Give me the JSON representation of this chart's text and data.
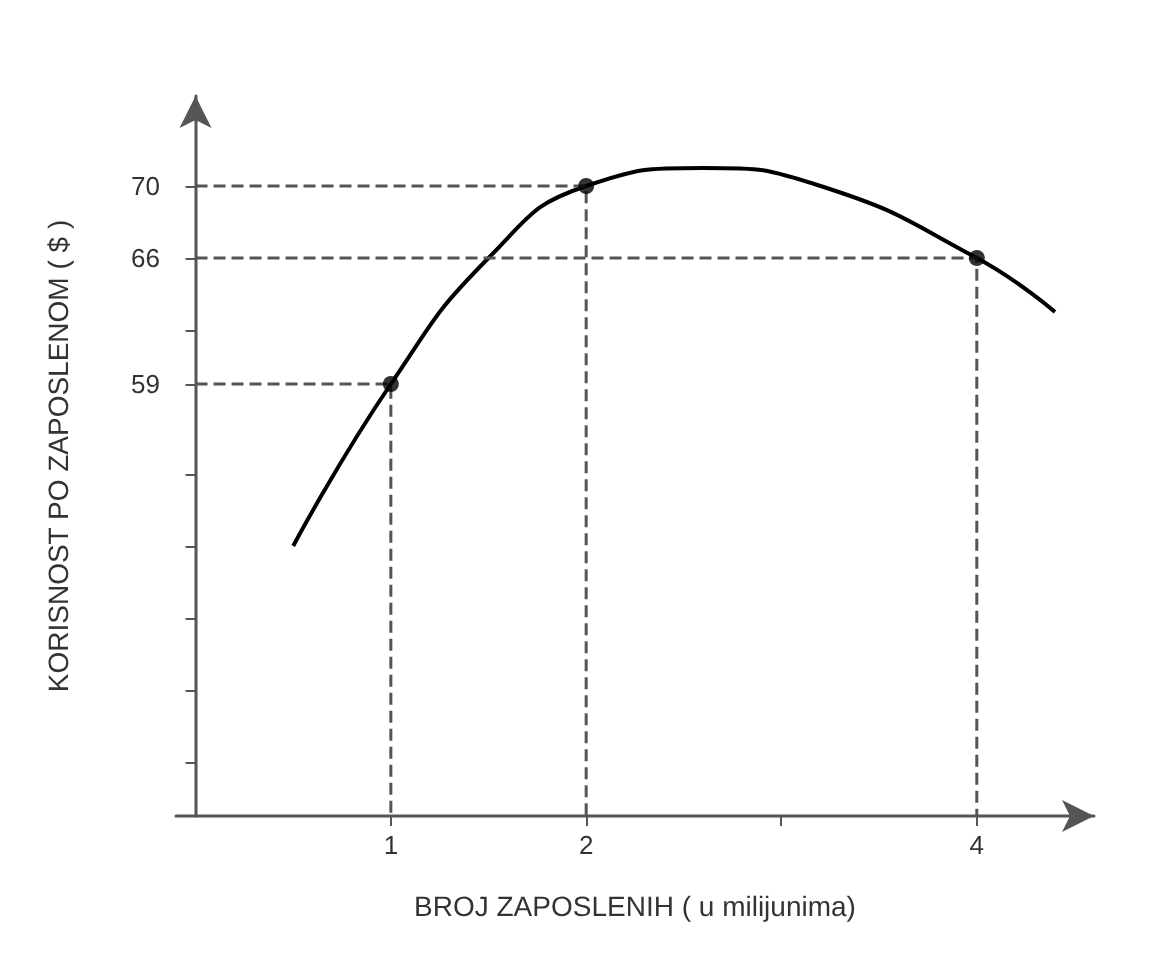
{
  "chart_data": {
    "type": "line",
    "xlabel": "BROJ ZAPOSLENIH ( u milijunima)",
    "ylabel": "KORISNOST PO ZAPOSLENOM ( $ )",
    "xlim": [
      -0.1,
      4.6
    ],
    "xticks": [
      1,
      2,
      {
        "value": 3,
        "label": null
      },
      4
    ],
    "ylim": [
      35,
      75
    ],
    "yticks": [
      {
        "value": 38,
        "label": null
      },
      {
        "value": 42,
        "label": null
      },
      {
        "value": 46,
        "label": null
      },
      {
        "value": 50,
        "label": null
      },
      {
        "value": 54,
        "label": null
      },
      59,
      {
        "value": 62,
        "label": null
      },
      66,
      70
    ],
    "grid": false,
    "series": [
      {
        "color": "#000000",
        "marker": "none",
        "line_style": "solid",
        "x": [
          0.5,
          1,
          1.5,
          2,
          2.6,
          3.2,
          4,
          4.4
        ],
        "values": [
          50,
          59,
          66,
          70,
          71,
          70,
          66,
          63
        ]
      },
      {
        "type": "scatter",
        "color": "#000000",
        "marker": "circle",
        "x": [
          1,
          2,
          4
        ],
        "values": [
          59,
          70,
          66
        ]
      },
      {
        "color": "#555555",
        "marker": "none",
        "line_style": "dashed",
        "x": [
          0,
          1,
          1
        ],
        "values": [
          59,
          59,
          35
        ]
      },
      {
        "color": "#555555",
        "marker": "none",
        "line_style": "dashed",
        "x": [
          0,
          2,
          2
        ],
        "values": [
          70,
          70,
          35
        ]
      },
      {
        "color": "#555555",
        "marker": "none",
        "line_style": "dashed",
        "x": [
          0,
          4,
          4
        ],
        "values": [
          66,
          66,
          35
        ]
      }
    ]
  }
}
